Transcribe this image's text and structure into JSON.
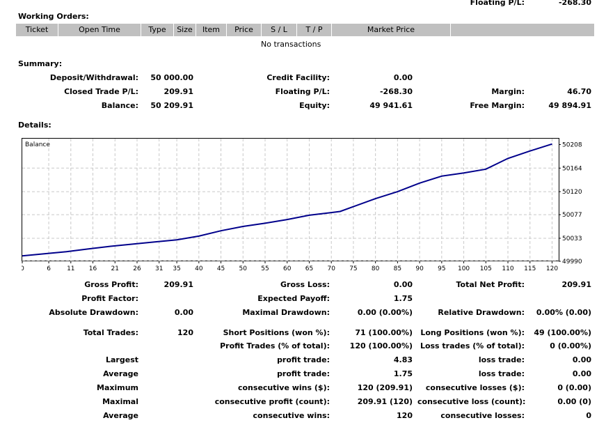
{
  "floating_top": {
    "label": "Floating P/L:",
    "value": "-268.30"
  },
  "working_orders": {
    "title": "Working Orders:",
    "columns": [
      "Ticket",
      "Open Time",
      "Type",
      "Size",
      "Item",
      "Price",
      "S / L",
      "T / P",
      "Market Price",
      ""
    ],
    "empty_text": "No transactions"
  },
  "summary": {
    "title": "Summary:",
    "deposit_label": "Deposit/Withdrawal:",
    "deposit_value": "50 000.00",
    "closed_label": "Closed Trade P/L:",
    "closed_value": "209.91",
    "balance_label": "Balance:",
    "balance_value": "50 209.91",
    "credit_label": "Credit Facility:",
    "credit_value": "0.00",
    "floating_label": "Floating P/L:",
    "floating_value": "-268.30",
    "equity_label": "Equity:",
    "equity_value": "49 941.61",
    "margin_label": "Margin:",
    "margin_value": "46.70",
    "free_margin_label": "Free Margin:",
    "free_margin_value": "49 894.91"
  },
  "details": {
    "title": "Details:",
    "gross_profit_label": "Gross Profit:",
    "gross_profit_value": "209.91",
    "gross_loss_label": "Gross Loss:",
    "gross_loss_value": "0.00",
    "total_net_label": "Total Net Profit:",
    "total_net_value": "209.91",
    "profit_factor_label": "Profit Factor:",
    "expected_payoff_label": "Expected Payoff:",
    "expected_payoff_value": "1.75",
    "abs_dd_label": "Absolute Drawdown:",
    "abs_dd_value": "0.00",
    "max_dd_label": "Maximal Drawdown:",
    "max_dd_value": "0.00 (0.00%)",
    "rel_dd_label": "Relative Drawdown:",
    "rel_dd_value": "0.00% (0.00)",
    "total_trades_label": "Total Trades:",
    "total_trades_value": "120",
    "short_label": "Short Positions (won %):",
    "short_value": "71 (100.00%)",
    "long_label": "Long Positions (won %):",
    "long_value": "49 (100.00%)",
    "profit_trades_label": "Profit Trades (% of total):",
    "profit_trades_value": "120 (100.00%)",
    "loss_trades_label": "Loss trades (% of total):",
    "loss_trades_value": "0 (0.00%)",
    "largest_label": "Largest",
    "largest_profit_label": "profit trade:",
    "largest_profit_value": "4.83",
    "largest_loss_label": "loss trade:",
    "largest_loss_value": "0.00",
    "average_label": "Average",
    "average_profit_label": "profit trade:",
    "average_profit_value": "1.75",
    "average_loss_label": "loss trade:",
    "average_loss_value": "0.00",
    "maximum_label": "Maximum",
    "max_cons_wins_label": "consecutive wins ($):",
    "max_cons_wins_value": "120 (209.91)",
    "max_cons_losses_label": "consecutive losses ($):",
    "max_cons_losses_value": "0 (0.00)",
    "maximal_label": "Maximal",
    "maximal_cons_profit_label": "consecutive profit (count):",
    "maximal_cons_profit_value": "209.91 (120)",
    "maximal_cons_loss_label": "consecutive loss (count):",
    "maximal_cons_loss_value": "0.00 (0)",
    "average2_label": "Average",
    "avg_cons_wins_label": "consecutive wins:",
    "avg_cons_wins_value": "120",
    "avg_cons_losses_label": "consecutive losses:",
    "avg_cons_losses_value": "0"
  },
  "chart_data": {
    "type": "line",
    "legend": "Balance",
    "line_color": "#00008b",
    "grid": true,
    "ylim": [
      49990,
      50219
    ],
    "y_ticks": [
      "50208",
      "50164",
      "50120",
      "50077",
      "50033",
      "49990"
    ],
    "y_tick_values": [
      50208,
      50164,
      50120,
      50077,
      50033,
      49990
    ],
    "x_ticks": [
      "0",
      "6",
      "11",
      "16",
      "21",
      "26",
      "31",
      "35",
      "40",
      "45",
      "50",
      "55",
      "60",
      "65",
      "70",
      "75",
      "80",
      "85",
      "90",
      "95",
      "100",
      "105",
      "110",
      "115",
      "120"
    ],
    "x_tick_values": [
      0,
      6,
      11,
      16,
      21,
      26,
      31,
      35,
      40,
      45,
      50,
      55,
      60,
      65,
      70,
      75,
      80,
      85,
      90,
      95,
      100,
      105,
      110,
      115,
      120
    ],
    "series": [
      {
        "x": [
          0,
          5,
          10,
          15,
          20,
          25,
          30,
          35,
          40,
          45,
          50,
          55,
          60,
          65,
          70,
          72,
          75,
          80,
          85,
          90,
          95,
          100,
          105,
          110,
          115,
          120
        ],
        "y": [
          50000,
          50004,
          50008,
          50013,
          50018,
          50022,
          50026,
          50030,
          50037,
          50047,
          50055,
          50061,
          50068,
          50076,
          50081,
          50083,
          50092,
          50107,
          50120,
          50136,
          50149,
          50155,
          50162,
          50182,
          50196,
          50209
        ]
      }
    ]
  }
}
